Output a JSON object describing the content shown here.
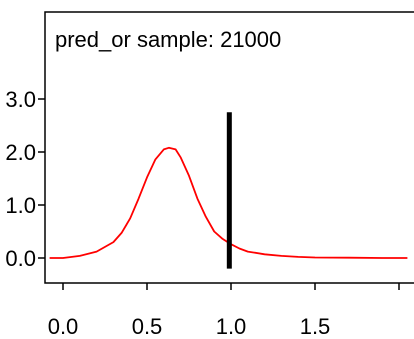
{
  "chart_data": {
    "type": "line",
    "title": "pred_or sample: 21000",
    "xlabel": "",
    "ylabel": "",
    "xlim": [
      -0.1,
      2.05
    ],
    "ylim": [
      -0.25,
      3.95
    ],
    "x_ticks": [
      0.0,
      0.5,
      1.0,
      1.5
    ],
    "x_tick_labels": [
      "0.0",
      "0.5",
      "1.0",
      "1.5"
    ],
    "y_ticks": [
      0.0,
      1.0,
      2.0,
      3.0
    ],
    "y_tick_labels": [
      "0.0",
      "1.0",
      "2.0",
      "3.0"
    ],
    "grid": false,
    "series": [
      {
        "color": "#ff0000",
        "x": [
          -0.08,
          0.0,
          0.1,
          0.2,
          0.3,
          0.35,
          0.4,
          0.45,
          0.5,
          0.55,
          0.6,
          0.63,
          0.67,
          0.7,
          0.75,
          0.8,
          0.85,
          0.9,
          0.95,
          1.0,
          1.05,
          1.1,
          1.2,
          1.3,
          1.4,
          1.5,
          1.7,
          1.9,
          2.05
        ],
        "values": [
          0.0,
          0.0,
          0.04,
          0.12,
          0.3,
          0.48,
          0.75,
          1.12,
          1.52,
          1.86,
          2.05,
          2.08,
          2.05,
          1.9,
          1.55,
          1.12,
          0.78,
          0.5,
          0.36,
          0.26,
          0.18,
          0.12,
          0.07,
          0.04,
          0.02,
          0.01,
          0.005,
          0.0,
          0.0
        ]
      }
    ],
    "marker_line": {
      "x": 0.99,
      "y_from": -0.2,
      "y_to": 2.75,
      "color": "#000000"
    }
  }
}
